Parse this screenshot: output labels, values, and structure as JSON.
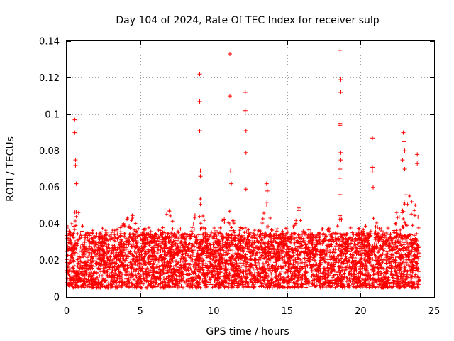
{
  "chart_data": {
    "type": "scatter",
    "title": "Day 104 of 2024, Rate Of TEC Index for receiver sulp",
    "xlabel": "GPS time / hours",
    "ylabel": "ROTI / TECUs",
    "xlim": [
      0,
      25
    ],
    "ylim": [
      0,
      0.14
    ],
    "xticks": [
      0,
      5,
      10,
      15,
      20,
      25
    ],
    "xtick_labels": [
      "0",
      "5",
      "10",
      "15",
      "20",
      "25"
    ],
    "yticks": [
      0,
      0.02,
      0.04,
      0.06,
      0.08,
      0.1,
      0.12,
      0.14
    ],
    "ytick_labels": [
      "0",
      "0.02",
      "0.04",
      "0.06",
      "0.08",
      "0.1",
      "0.12",
      "0.14"
    ],
    "grid": true,
    "marker": "+",
    "color": "#ff0000",
    "series": [
      {
        "name": "ROTI",
        "x_range": [
          0,
          24
        ],
        "baseline_y_range": [
          0.005,
          0.035
        ],
        "outliers": [
          {
            "x": 0.55,
            "y": 0.097
          },
          {
            "x": 0.55,
            "y": 0.09
          },
          {
            "x": 0.6,
            "y": 0.075
          },
          {
            "x": 0.6,
            "y": 0.072
          },
          {
            "x": 0.65,
            "y": 0.062
          },
          {
            "x": 9.05,
            "y": 0.122
          },
          {
            "x": 9.05,
            "y": 0.107
          },
          {
            "x": 9.05,
            "y": 0.091
          },
          {
            "x": 9.1,
            "y": 0.069
          },
          {
            "x": 9.1,
            "y": 0.066
          },
          {
            "x": 11.1,
            "y": 0.133
          },
          {
            "x": 11.1,
            "y": 0.11
          },
          {
            "x": 11.15,
            "y": 0.069
          },
          {
            "x": 11.2,
            "y": 0.062
          },
          {
            "x": 12.15,
            "y": 0.112
          },
          {
            "x": 12.15,
            "y": 0.102
          },
          {
            "x": 12.2,
            "y": 0.091
          },
          {
            "x": 12.2,
            "y": 0.079
          },
          {
            "x": 12.2,
            "y": 0.059
          },
          {
            "x": 13.6,
            "y": 0.062
          },
          {
            "x": 13.65,
            "y": 0.058
          },
          {
            "x": 18.6,
            "y": 0.135
          },
          {
            "x": 18.65,
            "y": 0.119
          },
          {
            "x": 18.65,
            "y": 0.112
          },
          {
            "x": 18.6,
            "y": 0.095
          },
          {
            "x": 18.6,
            "y": 0.094
          },
          {
            "x": 18.65,
            "y": 0.079
          },
          {
            "x": 18.65,
            "y": 0.075
          },
          {
            "x": 18.6,
            "y": 0.07
          },
          {
            "x": 18.6,
            "y": 0.065
          },
          {
            "x": 18.6,
            "y": 0.056
          },
          {
            "x": 20.8,
            "y": 0.087
          },
          {
            "x": 20.8,
            "y": 0.071
          },
          {
            "x": 20.8,
            "y": 0.069
          },
          {
            "x": 20.85,
            "y": 0.06
          },
          {
            "x": 22.9,
            "y": 0.09
          },
          {
            "x": 22.95,
            "y": 0.085
          },
          {
            "x": 23.0,
            "y": 0.08
          },
          {
            "x": 22.85,
            "y": 0.075
          },
          {
            "x": 23.0,
            "y": 0.07
          },
          {
            "x": 23.85,
            "y": 0.078
          },
          {
            "x": 23.85,
            "y": 0.073
          }
        ]
      }
    ]
  }
}
